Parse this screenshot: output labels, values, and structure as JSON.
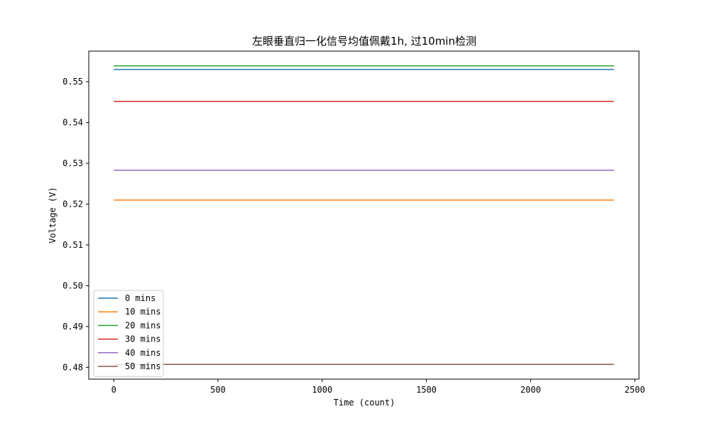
{
  "chart_data": {
    "type": "line",
    "title": "左眼垂直归一化信号均值佩戴1h, 过10min检测",
    "xlabel": "Time (count)",
    "ylabel": "Voltage (V)",
    "xlim": [
      -120,
      2520
    ],
    "ylim": [
      0.4771,
      0.5575
    ],
    "xticks": [
      0,
      500,
      1000,
      1500,
      2000,
      2500
    ],
    "yticks": [
      0.48,
      0.49,
      0.5,
      0.51,
      0.52,
      0.53,
      0.54,
      0.55
    ],
    "xtick_labels": [
      "0",
      "500",
      "1000",
      "1500",
      "2000",
      "2500"
    ],
    "ytick_labels": [
      "0.48",
      "0.49",
      "0.50",
      "0.51",
      "0.52",
      "0.53",
      "0.54",
      "0.55"
    ],
    "grid": false,
    "legend_position": "lower-left",
    "series": [
      {
        "name": "0 mins",
        "color": "#1f77b4",
        "x": [
          0,
          2400
        ],
        "y": [
          0.553,
          0.553
        ]
      },
      {
        "name": "10 mins",
        "color": "#ff7f0e",
        "x": [
          0,
          2400
        ],
        "y": [
          0.521,
          0.521
        ]
      },
      {
        "name": "20 mins",
        "color": "#2ca02c",
        "x": [
          0,
          2400
        ],
        "y": [
          0.5539,
          0.5539
        ]
      },
      {
        "name": "30 mins",
        "color": "#d62728",
        "x": [
          0,
          2400
        ],
        "y": [
          0.5452,
          0.5452
        ]
      },
      {
        "name": "40 mins",
        "color": "#9467bd",
        "x": [
          0,
          2400
        ],
        "y": [
          0.5283,
          0.5283
        ]
      },
      {
        "name": "50 mins",
        "color": "#8c564b",
        "x": [
          0,
          2400
        ],
        "y": [
          0.4807,
          0.4807
        ]
      }
    ]
  }
}
